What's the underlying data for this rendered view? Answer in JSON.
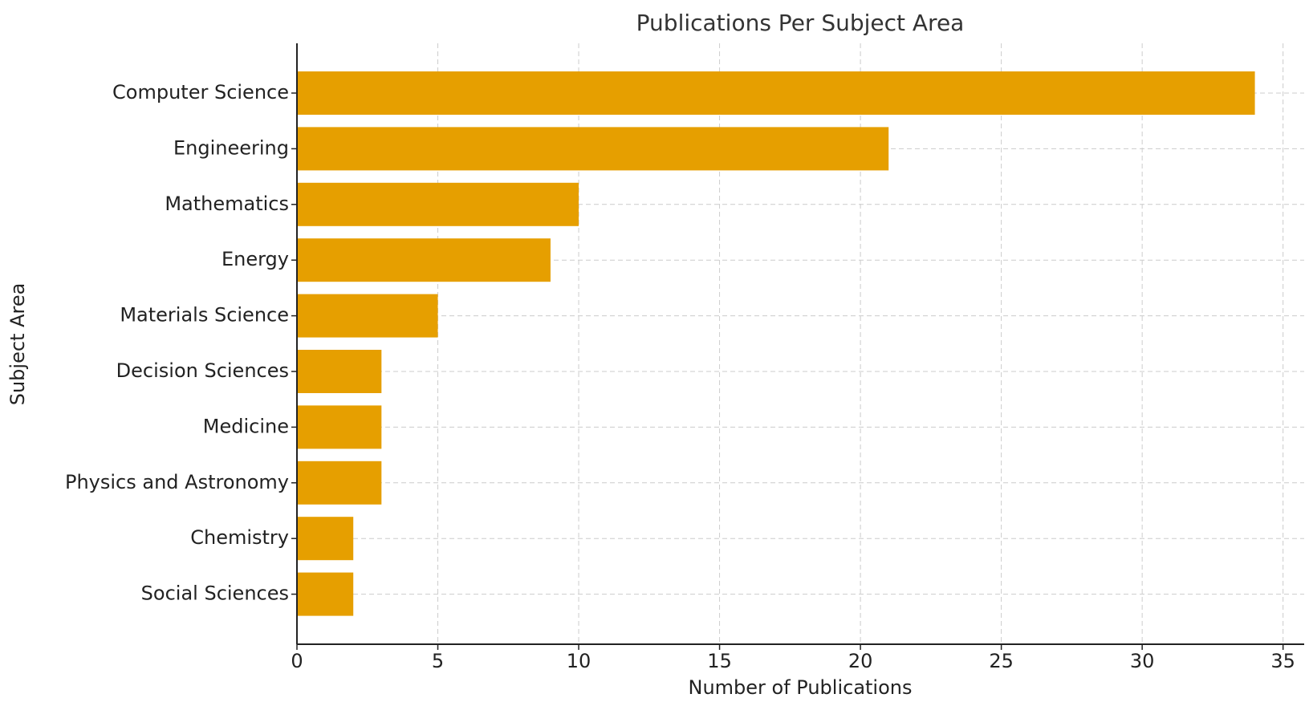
{
  "chart_data": {
    "type": "barh",
    "title": "Publications Per Subject Area",
    "x_label": "Number of Publications",
    "y_label": "Subject Area",
    "categories": [
      "Computer Science",
      "Engineering",
      "Mathematics",
      "Energy",
      "Materials Science",
      "Decision Sciences",
      "Medicine",
      "Physics and Astronomy",
      "Chemistry",
      "Social Sciences"
    ],
    "values": [
      34,
      21,
      10,
      9,
      5,
      3,
      3,
      3,
      2,
      2
    ],
    "color": "#e69f00",
    "xlim": [
      0,
      35.75
    ],
    "xticks": [
      0,
      5,
      10,
      15,
      20,
      25,
      30,
      35
    ],
    "grid": true
  }
}
